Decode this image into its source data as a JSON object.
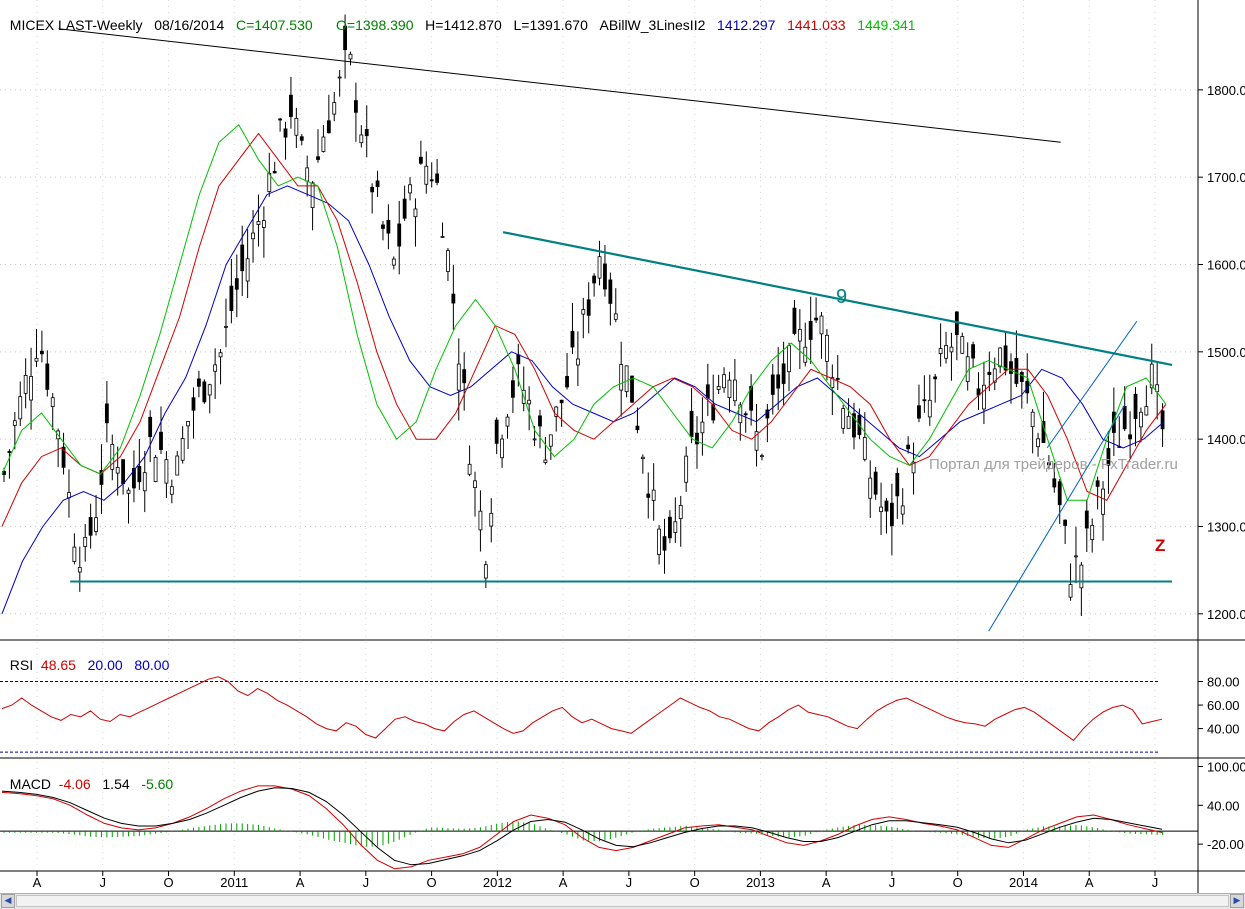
{
  "header": {
    "symbol": "MICEX LAST-Weekly",
    "date": "08/16/2014",
    "close": "C=1407.530",
    "open": "O=1398.390",
    "high": "H=1412.870",
    "low": "L=1391.670",
    "indicator": "ABillW_3LinesII2",
    "ind1": "1412.297",
    "ind2": "1441.033",
    "ind3": "1449.341"
  },
  "rsi_header": {
    "label": "RSI",
    "value": "48.65",
    "low": "20.00",
    "high": "80.00"
  },
  "macd_header": {
    "label": "MACD",
    "v1": "-4.06",
    "v2": "1.54",
    "v3": "-5.60"
  },
  "watermark": "Портал для трейдеров - FxTrader.ru",
  "annotations": {
    "wave_9": "9",
    "z": "Z"
  },
  "colors": {
    "up_down_bars": "#000000",
    "blue_line": "#0000c0",
    "red_line": "#d00000",
    "green_line": "#00c000",
    "trendline": "#008080",
    "macd_hist": "#00a000",
    "rsi": "#d00000"
  },
  "scrollbar": {
    "left_arrow": "left-arrow-icon",
    "right_arrow": "right-arrow-icon"
  },
  "chart_data": [
    {
      "type": "ohlc",
      "title": "MICEX LAST-Weekly",
      "yticks": [
        1200,
        1300,
        1400,
        1500,
        1600,
        1700,
        1800
      ],
      "ylim": [
        1170,
        1880
      ],
      "x_month_labels": [
        "A",
        "J",
        "O",
        "2011",
        "A",
        "J",
        "O",
        "2012",
        "A",
        "J",
        "O",
        "2013",
        "A",
        "J",
        "O",
        "2014",
        "A",
        "J"
      ],
      "close_path": [
        1360,
        1420,
        1470,
        1520,
        1460,
        1400,
        1300,
        1260,
        1320,
        1400,
        1380,
        1330,
        1380,
        1400,
        1380,
        1360,
        1420,
        1450,
        1480,
        1500,
        1560,
        1600,
        1640,
        1690,
        1740,
        1780,
        1720,
        1700,
        1760,
        1790,
        1840,
        1770,
        1700,
        1640,
        1600,
        1660,
        1690,
        1720,
        1680,
        1580,
        1460,
        1350,
        1280,
        1400,
        1450,
        1470,
        1430,
        1390,
        1420,
        1460,
        1500,
        1560,
        1620,
        1560,
        1490,
        1440,
        1370,
        1290,
        1260,
        1330,
        1390,
        1420,
        1450,
        1490,
        1470,
        1420,
        1390,
        1440,
        1470,
        1500,
        1530,
        1540,
        1500,
        1450,
        1420,
        1380,
        1340,
        1300,
        1330,
        1380,
        1420,
        1450,
        1500,
        1510,
        1480,
        1460,
        1490,
        1500,
        1470,
        1450,
        1420,
        1380,
        1320,
        1250,
        1260,
        1310,
        1360,
        1400,
        1420,
        1450,
        1470,
        1410
      ],
      "blue_ma_path": [
        1200,
        1260,
        1300,
        1330,
        1340,
        1330,
        1350,
        1380,
        1430,
        1470,
        1530,
        1600,
        1640,
        1680,
        1690,
        1680,
        1670,
        1650,
        1600,
        1540,
        1490,
        1460,
        1450,
        1460,
        1480,
        1500,
        1490,
        1460,
        1440,
        1430,
        1420,
        1430,
        1450,
        1470,
        1460,
        1440,
        1430,
        1420,
        1440,
        1460,
        1470,
        1450,
        1430,
        1410,
        1390,
        1380,
        1400,
        1420,
        1430,
        1440,
        1450,
        1480,
        1470,
        1440,
        1400,
        1390,
        1400,
        1420
      ],
      "red_ma_path": [
        1300,
        1350,
        1380,
        1390,
        1370,
        1360,
        1380,
        1420,
        1480,
        1540,
        1620,
        1690,
        1720,
        1750,
        1720,
        1690,
        1690,
        1650,
        1580,
        1500,
        1440,
        1400,
        1400,
        1430,
        1480,
        1530,
        1520,
        1480,
        1430,
        1410,
        1400,
        1420,
        1440,
        1460,
        1470,
        1460,
        1440,
        1410,
        1400,
        1420,
        1450,
        1480,
        1470,
        1460,
        1440,
        1400,
        1370,
        1380,
        1410,
        1440,
        1460,
        1480,
        1480,
        1450,
        1400,
        1340,
        1330,
        1370,
        1410,
        1440
      ],
      "green_ma_path": [
        1360,
        1410,
        1430,
        1400,
        1370,
        1360,
        1390,
        1450,
        1520,
        1600,
        1680,
        1740,
        1760,
        1720,
        1690,
        1700,
        1690,
        1620,
        1520,
        1440,
        1400,
        1420,
        1480,
        1530,
        1560,
        1530,
        1480,
        1410,
        1380,
        1400,
        1440,
        1460,
        1470,
        1460,
        1430,
        1400,
        1390,
        1420,
        1460,
        1490,
        1510,
        1490,
        1460,
        1430,
        1400,
        1380,
        1370,
        1400,
        1440,
        1480,
        1490,
        1480,
        1470,
        1400,
        1330,
        1330,
        1400,
        1460,
        1470,
        1440
      ],
      "trendlines": [
        {
          "name": "upper-long",
          "from": [
            0.05,
            1870
          ],
          "to": [
            0.905,
            1740
          ]
        },
        {
          "name": "wave-9",
          "from": [
            0.43,
            1637
          ],
          "to": [
            1.0,
            1485
          ]
        },
        {
          "name": "support",
          "from": [
            0.06,
            1237
          ],
          "to": [
            1.0,
            1237
          ]
        },
        {
          "name": "channel-low",
          "from": [
            0.845,
            1180
          ],
          "to": [
            0.96,
            1440
          ]
        },
        {
          "name": "channel-high",
          "from": [
            0.895,
            1390
          ],
          "to": [
            0.97,
            1535
          ]
        }
      ]
    },
    {
      "type": "line",
      "title": "RSI",
      "levels": [
        20,
        80
      ],
      "yticks": [
        40,
        60,
        80
      ],
      "ylim": [
        15,
        100
      ],
      "values": [
        57,
        60,
        66,
        60,
        55,
        50,
        47,
        52,
        50,
        55,
        48,
        46,
        52,
        50,
        54,
        58,
        62,
        66,
        70,
        74,
        78,
        82,
        84,
        80,
        72,
        68,
        74,
        70,
        64,
        60,
        55,
        50,
        44,
        40,
        38,
        45,
        42,
        35,
        32,
        40,
        48,
        50,
        46,
        44,
        40,
        38,
        46,
        52,
        55,
        50,
        45,
        40,
        36,
        38,
        45,
        50,
        55,
        58,
        50,
        45,
        48,
        44,
        40,
        38,
        36,
        42,
        48,
        54,
        60,
        66,
        62,
        58,
        55,
        50,
        48,
        44,
        40,
        38,
        45,
        50,
        56,
        60,
        54,
        52,
        50,
        46,
        42,
        40,
        48,
        55,
        60,
        64,
        66,
        62,
        58,
        54,
        50,
        47,
        45,
        44,
        42,
        48,
        52,
        56,
        58,
        54,
        48,
        42,
        36,
        30,
        40,
        48,
        54,
        58,
        60,
        56,
        44,
        46,
        48
      ]
    },
    {
      "type": "line",
      "title": "MACD",
      "yticks": [
        100,
        40,
        -20
      ],
      "ylim": [
        -60,
        110
      ],
      "macd": [
        60,
        58,
        55,
        50,
        40,
        25,
        12,
        5,
        2,
        5,
        12,
        22,
        35,
        50,
        62,
        70,
        70,
        65,
        55,
        35,
        10,
        -20,
        -45,
        -58,
        -55,
        -45,
        -40,
        -35,
        -25,
        -5,
        15,
        25,
        20,
        10,
        -10,
        -25,
        -30,
        -25,
        -15,
        -5,
        5,
        8,
        10,
        6,
        2,
        -8,
        -18,
        -22,
        -15,
        -5,
        8,
        18,
        22,
        18,
        12,
        8,
        2,
        -10,
        -22,
        -25,
        -12,
        2,
        12,
        22,
        25,
        18,
        10,
        4,
        -2
      ],
      "signal": [
        62,
        60,
        57,
        52,
        44,
        32,
        20,
        12,
        8,
        8,
        12,
        18,
        28,
        40,
        52,
        62,
        67,
        66,
        60,
        46,
        25,
        0,
        -25,
        -45,
        -52,
        -50,
        -44,
        -38,
        -30,
        -15,
        2,
        15,
        18,
        14,
        2,
        -12,
        -22,
        -24,
        -18,
        -10,
        -2,
        4,
        8,
        8,
        5,
        -2,
        -10,
        -16,
        -16,
        -10,
        0,
        10,
        16,
        16,
        13,
        10,
        6,
        -2,
        -12,
        -18,
        -14,
        -4,
        6,
        14,
        20,
        18,
        13,
        8,
        3
      ],
      "hist_baseline": 0
    }
  ]
}
